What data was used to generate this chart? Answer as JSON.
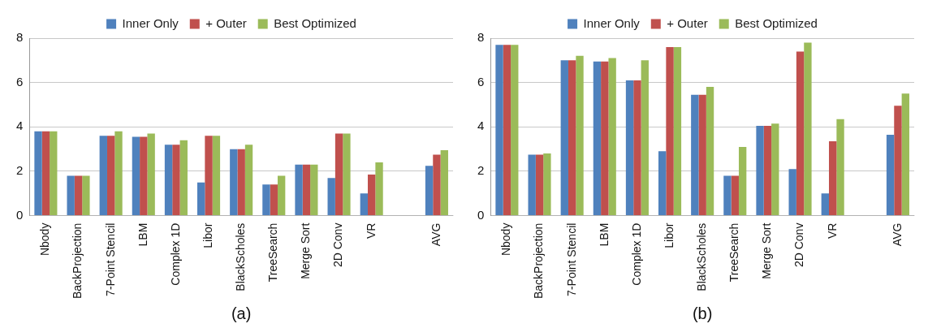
{
  "chart_data": [
    {
      "type": "bar",
      "xlabel": "(a)",
      "categories": [
        "Nbody",
        "BackProjection",
        "7-Point Stencil",
        "LBM",
        "Complex 1D",
        "Libor",
        "BlackScholes",
        "TreeSearch",
        "Merge Sort",
        "2D Conv",
        "VR",
        null,
        "AVG"
      ],
      "series": [
        {
          "name": "Inner Only",
          "color": "#4f81bd",
          "values": [
            3.8,
            1.8,
            3.6,
            3.55,
            3.2,
            1.5,
            3.0,
            1.4,
            2.3,
            1.7,
            1.0,
            null,
            2.25
          ]
        },
        {
          "name": "+ Outer",
          "color": "#c0504d",
          "values": [
            3.8,
            1.8,
            3.6,
            3.55,
            3.2,
            3.6,
            3.0,
            1.4,
            2.3,
            3.7,
            1.85,
            null,
            2.75
          ]
        },
        {
          "name": "Best Optimized",
          "color": "#9bbb59",
          "values": [
            3.8,
            1.8,
            3.8,
            3.7,
            3.4,
            3.6,
            3.2,
            1.8,
            2.3,
            3.7,
            2.4,
            null,
            2.95
          ]
        }
      ],
      "ylim": [
        0,
        8
      ],
      "yticks": [
        0,
        2,
        4,
        6,
        8
      ],
      "grid": "y",
      "legend": "top"
    },
    {
      "type": "bar",
      "xlabel": "(b)",
      "categories": [
        "Nbody",
        "BackProjection",
        "7-Point Stencil",
        "LBM",
        "Complex 1D",
        "Libor",
        "BlackScholes",
        "TreeSearch",
        "Merge Sort",
        "2D Conv",
        "VR",
        null,
        "AVG"
      ],
      "series": [
        {
          "name": "Inner Only",
          "color": "#4f81bd",
          "values": [
            7.7,
            2.75,
            7.0,
            6.95,
            6.1,
            2.9,
            5.45,
            1.8,
            4.05,
            2.1,
            1.0,
            null,
            3.65
          ]
        },
        {
          "name": "+ Outer",
          "color": "#c0504d",
          "values": [
            7.7,
            2.75,
            7.0,
            6.95,
            6.1,
            7.6,
            5.45,
            1.8,
            4.05,
            7.4,
            3.35,
            null,
            4.95
          ]
        },
        {
          "name": "Best Optimized",
          "color": "#9bbb59",
          "values": [
            7.7,
            2.8,
            7.2,
            7.1,
            7.0,
            7.6,
            5.8,
            3.1,
            4.15,
            7.8,
            4.35,
            null,
            5.5
          ]
        }
      ],
      "ylim": [
        0,
        8
      ],
      "yticks": [
        0,
        2,
        4,
        6,
        8
      ],
      "grid": "y",
      "legend": "top"
    }
  ]
}
